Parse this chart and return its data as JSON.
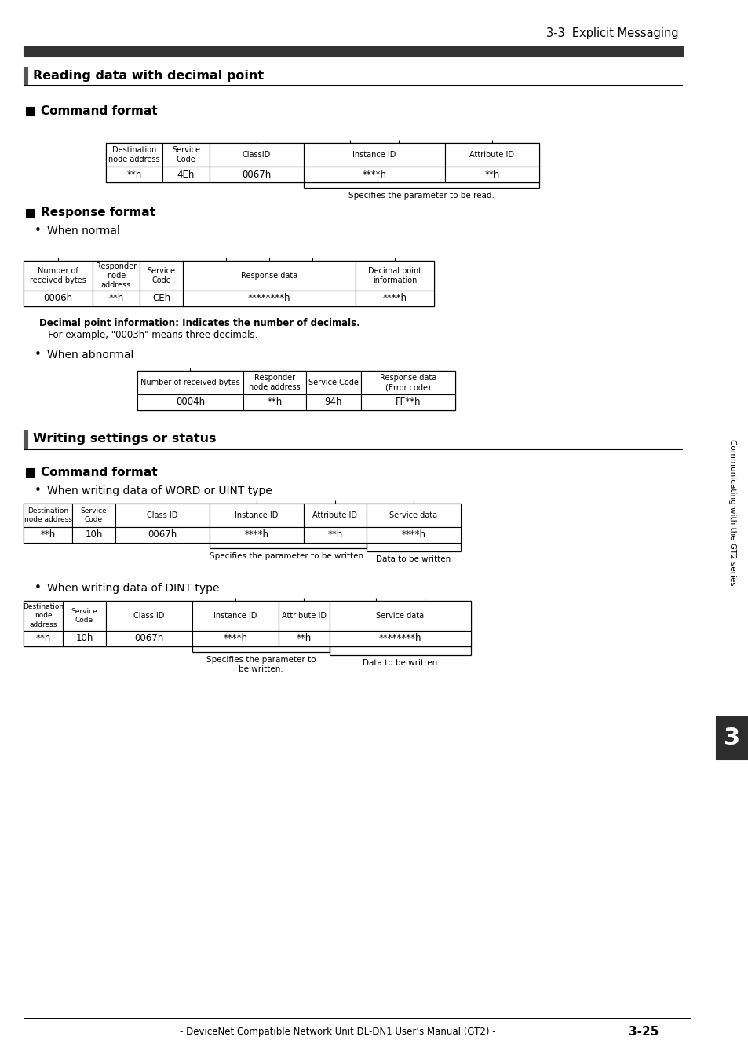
{
  "page_header": "3-3  Explicit Messaging",
  "section1_title": "Reading data with decimal point",
  "section2_title": "Writing settings or status",
  "bg_color": "#ffffff",
  "header_bar_color": "#333333",
  "footer_text": "- DeviceNet Compatible Network Unit DL-DN1 User’s Manual (GT2) -",
  "footer_page": "3-25",
  "side_tab_color": "#2d2d2d",
  "side_tab_text": "Communicating with the GT2 series",
  "side_tab_number": "3",
  "cmd_format_label": "Command format",
  "resp_format_label": "Response format",
  "bullet_when_normal": "When normal",
  "bullet_when_abnormal": "When abnormal",
  "bullet_word_uint": "When writing data of WORD or UINT type",
  "bullet_dint": "When writing data of DINT type",
  "decimal_info_text": "Decimal point information: Indicates the number of decimals.",
  "decimal_example_text": "   For example, \"0003h\" means three decimals.",
  "specifies_read": "Specifies the parameter to be read.",
  "specifies_write": "Specifies the parameter to be written.",
  "data_to_be_written": "Data to be written",
  "specifies_write2": "Specifies the parameter to\nbe written.",
  "data_to_be_written2": "Data to be written"
}
